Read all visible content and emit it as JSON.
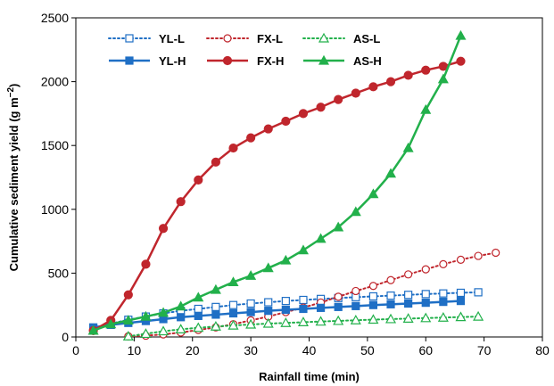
{
  "chart_data": {
    "type": "line",
    "title": "",
    "xlabel": "Rainfall time (min)",
    "ylabel_main": "Cumulative sediment yield (g m",
    "ylabel_sup": "−2",
    "ylabel_close": ")",
    "xlim": [
      0,
      80
    ],
    "ylim": [
      0,
      2500
    ],
    "xticks": [
      0,
      10,
      20,
      30,
      40,
      50,
      60,
      70,
      80
    ],
    "yticks": [
      0,
      500,
      1000,
      1500,
      2000,
      2500
    ],
    "xtick_labels": [
      "0",
      "10",
      "20",
      "30",
      "40",
      "50",
      "60",
      "70",
      "80"
    ],
    "ytick_labels": [
      "0",
      "500",
      "1000",
      "1500",
      "2000",
      "2500"
    ],
    "grid": false,
    "legend_position": "top-left",
    "series": [
      {
        "name": "YL-L",
        "color": "#1f6fc5",
        "dash": "dotted",
        "marker": "square-open",
        "x": [
          3,
          6,
          9,
          12,
          15,
          18,
          21,
          24,
          27,
          30,
          33,
          36,
          39,
          42,
          45,
          48,
          51,
          54,
          57,
          60,
          63,
          66,
          69
        ],
        "y": [
          65,
          105,
          135,
          160,
          185,
          205,
          220,
          235,
          250,
          262,
          272,
          282,
          290,
          298,
          305,
          312,
          318,
          324,
          330,
          336,
          341,
          346,
          350
        ]
      },
      {
        "name": "FX-L",
        "color": "#c0262d",
        "dash": "dotted",
        "marker": "circle-open",
        "x": [
          9,
          12,
          15,
          18,
          21,
          24,
          27,
          30,
          33,
          36,
          39,
          42,
          45,
          48,
          51,
          54,
          57,
          60,
          63,
          66,
          69,
          72
        ],
        "y": [
          5,
          10,
          20,
          35,
          55,
          75,
          100,
          130,
          160,
          195,
          230,
          270,
          315,
          360,
          400,
          445,
          490,
          530,
          570,
          605,
          635,
          660
        ]
      },
      {
        "name": "AS-L",
        "color": "#22b04b",
        "dash": "dotted",
        "marker": "triangle-open",
        "x": [
          9,
          12,
          15,
          18,
          21,
          24,
          27,
          30,
          33,
          36,
          39,
          42,
          45,
          48,
          51,
          54,
          57,
          60,
          63,
          66,
          69
        ],
        "y": [
          5,
          25,
          45,
          60,
          72,
          82,
          90,
          98,
          105,
          110,
          116,
          121,
          126,
          131,
          136,
          140,
          144,
          148,
          152,
          156,
          160
        ]
      },
      {
        "name": "YL-H",
        "color": "#1f6fc5",
        "dash": "solid",
        "marker": "square-filled",
        "x": [
          3,
          6,
          9,
          12,
          15,
          18,
          21,
          24,
          27,
          30,
          33,
          36,
          39,
          42,
          45,
          48,
          51,
          54,
          57,
          60,
          63,
          66
        ],
        "y": [
          75,
          95,
          110,
          125,
          140,
          155,
          165,
          175,
          185,
          195,
          205,
          213,
          220,
          228,
          235,
          242,
          250,
          256,
          262,
          268,
          275,
          282
        ]
      },
      {
        "name": "FX-H",
        "color": "#c0262d",
        "dash": "solid",
        "marker": "circle-filled",
        "x": [
          3,
          6,
          9,
          12,
          15,
          18,
          21,
          24,
          27,
          30,
          33,
          36,
          39,
          42,
          45,
          48,
          51,
          54,
          57,
          60,
          63,
          66
        ],
        "y": [
          50,
          130,
          330,
          570,
          850,
          1060,
          1230,
          1370,
          1480,
          1560,
          1630,
          1690,
          1750,
          1800,
          1860,
          1910,
          1960,
          2000,
          2050,
          2090,
          2120,
          2160
        ]
      },
      {
        "name": "AS-H",
        "color": "#22b04b",
        "dash": "solid",
        "marker": "triangle-filled",
        "x": [
          3,
          6,
          9,
          12,
          15,
          18,
          21,
          24,
          27,
          30,
          33,
          36,
          39,
          42,
          45,
          48,
          51,
          54,
          57,
          60,
          63,
          66
        ],
        "y": [
          50,
          100,
          130,
          160,
          190,
          240,
          310,
          370,
          430,
          480,
          540,
          600,
          680,
          770,
          860,
          980,
          1120,
          1280,
          1480,
          1780,
          2020,
          2360
        ]
      }
    ]
  }
}
